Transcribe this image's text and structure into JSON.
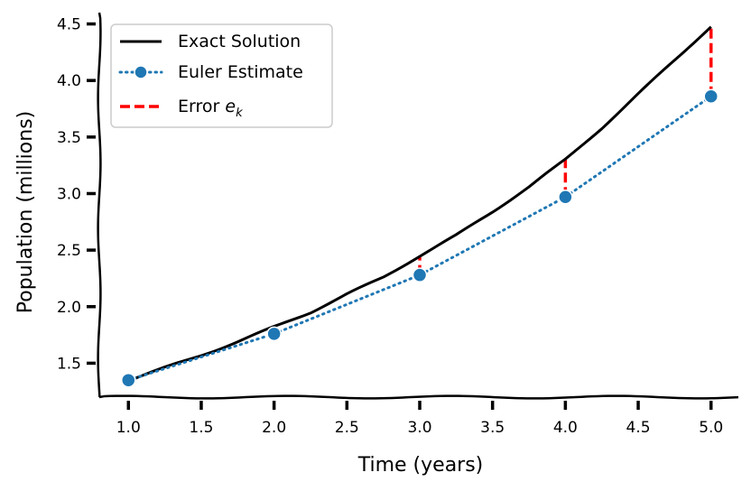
{
  "chart_data": {
    "type": "line",
    "title": "",
    "xlabel": "Time (years)",
    "ylabel": "Population (millions)",
    "xlim": [
      0.8,
      5.2
    ],
    "ylim": [
      1.2,
      4.6
    ],
    "xticks": [
      1.0,
      1.5,
      2.0,
      2.5,
      3.0,
      3.5,
      4.0,
      4.5,
      5.0
    ],
    "xtick_labels": [
      "1.0",
      "1.5",
      "2.0",
      "2.5",
      "3.0",
      "3.5",
      "4.0",
      "4.5",
      "5.0"
    ],
    "yticks": [
      1.5,
      2.0,
      2.5,
      3.0,
      3.5,
      4.0,
      4.5
    ],
    "ytick_labels": [
      "1.5",
      "2.0",
      "2.5",
      "3.0",
      "3.5",
      "4.0",
      "4.5"
    ],
    "grid": false,
    "legend_position": "top-left",
    "series": [
      {
        "name": "Exact Solution",
        "style": "solid",
        "color": "#000000",
        "x": [
          1.0,
          1.25,
          1.5,
          1.75,
          2.0,
          2.25,
          2.5,
          2.75,
          3.0,
          3.25,
          3.5,
          3.75,
          4.0,
          4.25,
          4.5,
          4.75,
          5.0
        ],
        "y": [
          1.35,
          1.46,
          1.57,
          1.69,
          1.82,
          1.95,
          2.11,
          2.26,
          2.45,
          2.63,
          2.84,
          3.06,
          3.3,
          3.58,
          3.88,
          4.18,
          4.48
        ]
      },
      {
        "name": "Euler Estimate",
        "style": "dotted",
        "marker": "circle",
        "color": "#1f77b4",
        "x": [
          1.0,
          2.0,
          3.0,
          4.0,
          5.0
        ],
        "y": [
          1.35,
          1.76,
          2.28,
          2.97,
          3.86
        ]
      },
      {
        "name": "Error e_k",
        "legend_label": "Error ",
        "legend_math": "e",
        "legend_sub": "k",
        "style": "dashed",
        "color": "#ff0000",
        "segments": [
          {
            "x": 3.0,
            "y0": 2.28,
            "y1": 2.45
          },
          {
            "x": 4.0,
            "y0": 2.97,
            "y1": 3.3
          },
          {
            "x": 5.0,
            "y0": 3.86,
            "y1": 4.48
          }
        ]
      }
    ]
  }
}
